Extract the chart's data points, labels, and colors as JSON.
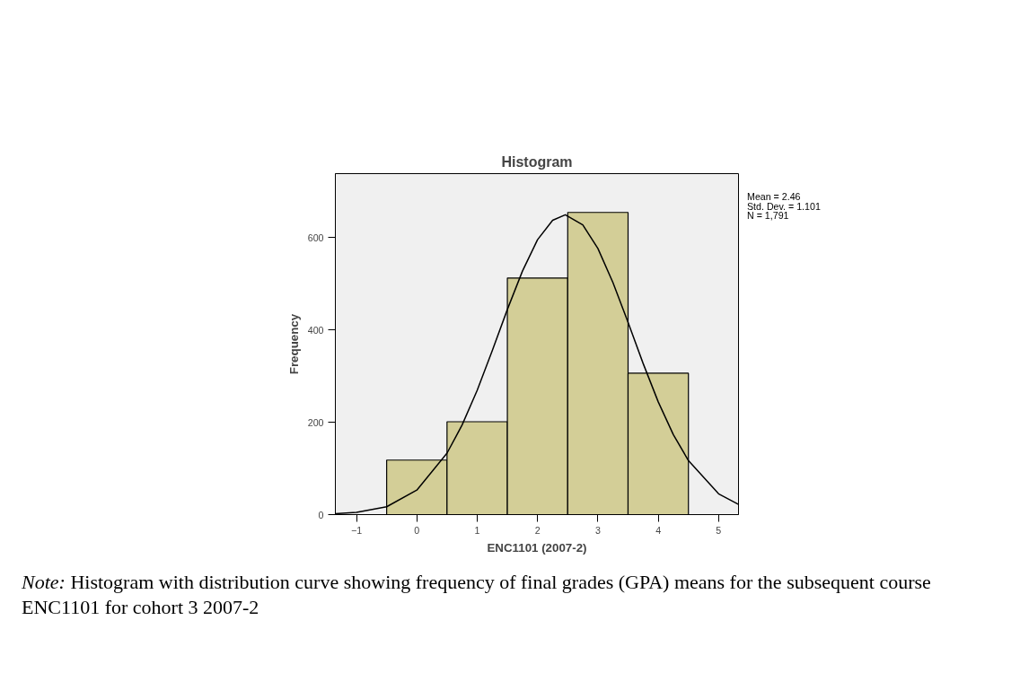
{
  "chart_data": {
    "type": "histogram",
    "title": "Histogram",
    "xlabel": "ENC1101 (2007-2)",
    "ylabel": "Frequency",
    "bins": [
      -0.5,
      0.5,
      1.5,
      2.5,
      3.5,
      4.5
    ],
    "values": [
      118,
      201,
      512,
      654,
      306
    ],
    "color": "#d3ce97",
    "series": [
      {
        "type": "line",
        "color": "#000000",
        "x": [
          -1.35,
          -1,
          -0.5,
          0,
          0.5,
          0.75,
          1,
          1.25,
          1.5,
          1.75,
          2,
          2.25,
          2.46,
          2.75,
          3,
          3.25,
          3.5,
          3.75,
          4,
          4.25,
          4.5,
          5,
          5.33
        ],
        "values": [
          2,
          5,
          17,
          53,
          133,
          194,
          269,
          355,
          444,
          527,
          595,
          637,
          649,
          627,
          576,
          502,
          416,
          327,
          244,
          173,
          117,
          45,
          22
        ]
      }
    ],
    "xlim": [
      -1.35,
      5.33
    ],
    "ylim": [
      0,
      738
    ],
    "xticks": [
      -1,
      0,
      1,
      2,
      3,
      4,
      5
    ],
    "yticks": [
      0,
      200,
      400,
      600
    ],
    "grid": false,
    "annotations": [
      "Mean = 2.46",
      "Std. Dev. = 1.101",
      "N = 1,791",
      "Note: Histogram with distribution curve showing frequency of final grades (GPA) means for the subsequent course ENC1101 for cohort 3 2007-2"
    ]
  }
}
